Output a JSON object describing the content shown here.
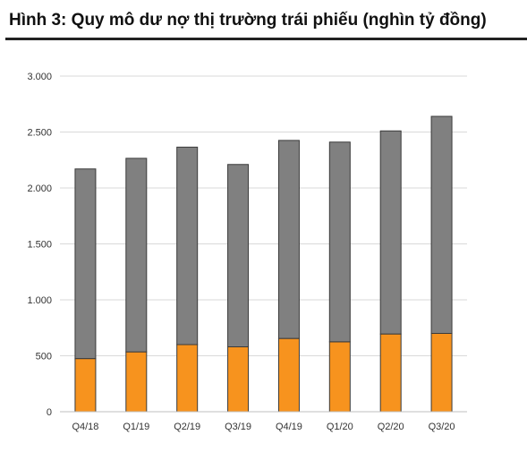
{
  "figure": {
    "title": "Hình 3: Quy mô dư nợ thị trường trái phiếu (nghìn tỷ đồng)"
  },
  "chart_data": {
    "type": "bar",
    "stacked": true,
    "categories": [
      "Q4/18",
      "Q1/19",
      "Q2/19",
      "Q3/19",
      "Q4/19",
      "Q1/20",
      "Q2/20",
      "Q3/20"
    ],
    "series": [
      {
        "color": "#f7931e",
        "values": [
          475,
          535,
          600,
          580,
          655,
          625,
          695,
          700
        ]
      },
      {
        "color": "#808080",
        "values": [
          1695,
          1730,
          1765,
          1630,
          1770,
          1785,
          1815,
          1940
        ]
      }
    ],
    "totals": [
      2170,
      2265,
      2365,
      2210,
      2425,
      2410,
      2510,
      2640
    ],
    "ylim": [
      0,
      3000
    ],
    "yticks": [
      0,
      500,
      1000,
      1500,
      2000,
      2500,
      3000
    ],
    "ytick_labels": [
      "0",
      "500",
      "1.000",
      "1.500",
      "2.000",
      "2.500",
      "3.000"
    ],
    "grid": true,
    "legend": "none",
    "xlabel": "",
    "ylabel": ""
  }
}
